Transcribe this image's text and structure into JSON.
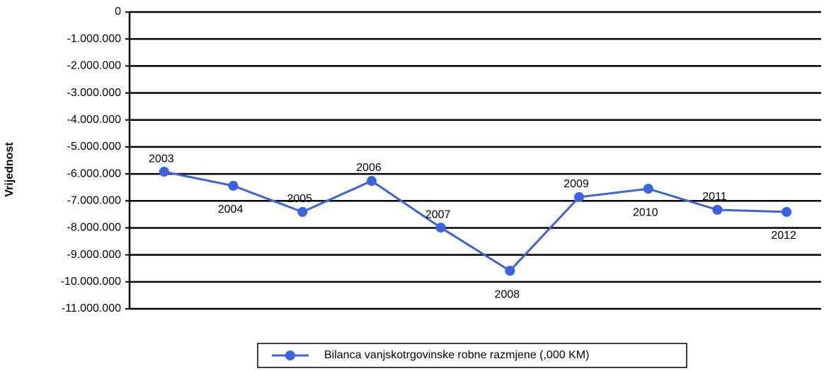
{
  "chart_data": {
    "type": "line",
    "y_label": "Vrijednost",
    "categories": [
      "2003",
      "2004",
      "2005",
      "2006",
      "2007",
      "2008",
      "2009",
      "2010",
      "2011",
      "2012"
    ],
    "series": [
      {
        "name": "Bilanca vanjskotrgovinske robne razmjene (,000 KM)",
        "color": "#3b62e0",
        "values": [
          -5920000,
          -6440000,
          -7410000,
          -6260000,
          -7990000,
          -9590000,
          -6860000,
          -6550000,
          -7330000,
          -7410000
        ]
      }
    ],
    "ylim": [
      -11000000,
      0
    ],
    "yticks": [
      0,
      {
        "value": -1000000,
        "label": "-1.000.000"
      },
      {
        "value": -2000000,
        "label": "-2.000.000"
      },
      {
        "value": -3000000,
        "label": "-3.000.000"
      },
      {
        "value": -4000000,
        "label": "-4.000.000"
      },
      {
        "value": -5000000,
        "label": "-5.000.000"
      },
      {
        "value": -6000000,
        "label": "-6.000.000"
      },
      {
        "value": -7000000,
        "label": "-7.000.000"
      },
      {
        "value": -8000000,
        "label": "-8.000.000"
      },
      {
        "value": -9000000,
        "label": "-9.000.000"
      },
      {
        "value": -10000000,
        "label": "-10.000.000"
      },
      {
        "value": -11000000,
        "label": "-11.000.000"
      }
    ],
    "grid": true,
    "legend": "bottom"
  }
}
